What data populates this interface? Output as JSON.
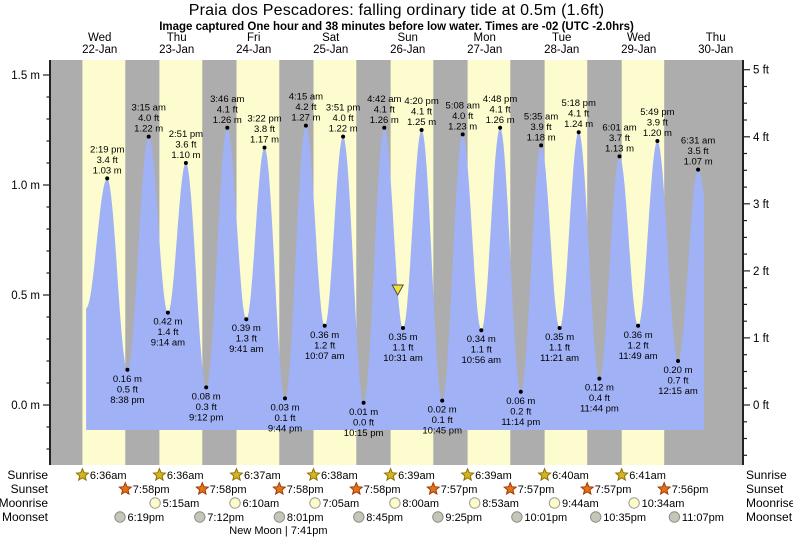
{
  "header": {
    "title": "Praia dos Pescadores: falling  ordinary tide at 0.5m (1.6ft)",
    "subtitle": "Image captured One hour and 38 minutes before low water. Times are -02 (UTC -2.0hrs)"
  },
  "colors": {
    "day_band": "#FCFCCE",
    "night_band": "#ADADAD",
    "tide_fill": "#A0B1F5",
    "day_label_red": "#E0402F",
    "axis_line": "#222222",
    "marker_fill": "#F2E337",
    "marker_border": "#4A4A4A",
    "sunrise_star_fill": "#D9B125",
    "sunrise_star_border": "#8A7500",
    "sunset_star_fill": "#E2731D",
    "sunset_star_border": "#A03C00",
    "moonrise_circle_fill": "#FCFCC8",
    "moonrise_circle_border": "#999999",
    "moonset_circle_fill": "#C6C6B6",
    "moonset_circle_border": "#8C8C8C"
  },
  "chart_data": {
    "type": "area",
    "title": "Praia dos Pescadores: falling  ordinary tide at 0.5m (1.6ft)",
    "x_axis": {
      "days": [
        {
          "name": "Wed",
          "date": "22-Jan"
        },
        {
          "name": "Thu",
          "date": "23-Jan"
        },
        {
          "name": "Fri",
          "date": "24-Jan"
        },
        {
          "name": "Sat",
          "date": "25-Jan"
        },
        {
          "name": "Sun",
          "date": "26-Jan"
        },
        {
          "name": "Mon",
          "date": "27-Jan"
        },
        {
          "name": "Tue",
          "date": "28-Jan"
        },
        {
          "name": "Wed",
          "date": "29-Jan"
        },
        {
          "name": "Thu",
          "date": "30-Jan"
        }
      ]
    },
    "y_axis_left": {
      "unit": "m",
      "major_ticks": [
        0.0,
        0.5,
        1.0,
        1.5
      ],
      "minor_step": 0.1,
      "range": [
        -0.16,
        1.57
      ]
    },
    "y_axis_right": {
      "unit": "ft",
      "major_ticks": [
        0,
        1,
        2,
        3,
        4,
        5
      ],
      "minor_step": 0.25,
      "range": [
        -0.9,
        5.15
      ]
    },
    "tide_events": [
      {
        "day": 0,
        "type": "high",
        "time": "2:19 pm",
        "ft": 3.4,
        "m": 1.03
      },
      {
        "day": 0,
        "type": "low",
        "time": "8:38 pm",
        "ft": 0.5,
        "m": 0.16
      },
      {
        "day": 1,
        "type": "high",
        "time": "3:15 am",
        "ft": 4.0,
        "m": 1.22
      },
      {
        "day": 1,
        "type": "low",
        "time": "9:14 am",
        "ft": 1.4,
        "m": 0.42
      },
      {
        "day": 1,
        "type": "high",
        "time": "2:51 pm",
        "ft": 3.6,
        "m": 1.1
      },
      {
        "day": 1,
        "type": "low",
        "time": "9:12 pm",
        "ft": 0.3,
        "m": 0.08
      },
      {
        "day": 2,
        "type": "high",
        "time": "3:46 am",
        "ft": 4.1,
        "m": 1.26
      },
      {
        "day": 2,
        "type": "low",
        "time": "9:41 am",
        "ft": 1.3,
        "m": 0.39
      },
      {
        "day": 2,
        "type": "high",
        "time": "3:22 pm",
        "ft": 3.8,
        "m": 1.17
      },
      {
        "day": 2,
        "type": "low",
        "time": "9:44 pm",
        "ft": 0.1,
        "m": 0.03
      },
      {
        "day": 3,
        "type": "high",
        "time": "4:15 am",
        "ft": 4.2,
        "m": 1.27
      },
      {
        "day": 3,
        "type": "low",
        "time": "10:07 am",
        "ft": 1.2,
        "m": 0.36
      },
      {
        "day": 3,
        "type": "high",
        "time": "3:51 pm",
        "ft": 4.0,
        "m": 1.22
      },
      {
        "day": 3,
        "type": "low",
        "time": "10:15 pm",
        "ft": 0.0,
        "m": 0.01
      },
      {
        "day": 4,
        "type": "high",
        "time": "4:42 am",
        "ft": 4.1,
        "m": 1.26
      },
      {
        "day": 4,
        "type": "low",
        "time": "10:31 am",
        "ft": 1.1,
        "m": 0.35
      },
      {
        "day": 4,
        "type": "high",
        "time": "4:20 pm",
        "ft": 4.1,
        "m": 1.25
      },
      {
        "day": 4,
        "type": "low",
        "time": "10:45 pm",
        "ft": 0.1,
        "m": 0.02
      },
      {
        "day": 5,
        "type": "high",
        "time": "5:08 am",
        "ft": 4.0,
        "m": 1.23
      },
      {
        "day": 5,
        "type": "low",
        "time": "10:56 am",
        "ft": 1.1,
        "m": 0.34
      },
      {
        "day": 5,
        "type": "high",
        "time": "4:48 pm",
        "ft": 4.1,
        "m": 1.26
      },
      {
        "day": 5,
        "type": "low",
        "time": "11:14 pm",
        "ft": 0.2,
        "m": 0.06
      },
      {
        "day": 6,
        "type": "high",
        "time": "5:35 am",
        "ft": 3.9,
        "m": 1.18
      },
      {
        "day": 6,
        "type": "low",
        "time": "11:21 am",
        "ft": 1.1,
        "m": 0.35
      },
      {
        "day": 6,
        "type": "high",
        "time": "5:18 pm",
        "ft": 4.1,
        "m": 1.24
      },
      {
        "day": 6,
        "type": "low",
        "time": "11:44 pm",
        "ft": 0.4,
        "m": 0.12
      },
      {
        "day": 7,
        "type": "high",
        "time": "6:01 am",
        "ft": 3.7,
        "m": 1.13
      },
      {
        "day": 7,
        "type": "low",
        "time": "11:49 am",
        "ft": 1.2,
        "m": 0.36
      },
      {
        "day": 7,
        "type": "high",
        "time": "5:49 pm",
        "ft": 3.9,
        "m": 1.2
      },
      {
        "day": 8,
        "type": "low",
        "time": "12:15 am",
        "ft": 0.7,
        "m": 0.2
      },
      {
        "day": 8,
        "type": "high",
        "time": "6:31 am",
        "ft": 3.5,
        "m": 1.07
      }
    ],
    "current_marker": {
      "day": 4,
      "time": "8:53 am",
      "height_m": 0.5
    },
    "sun_moon": {
      "rows": [
        {
          "label": "Sunrise",
          "icon": "sunrise-star-icon",
          "entries": [
            {
              "day": 0,
              "time": "6:36am"
            },
            {
              "day": 1,
              "time": "6:36am"
            },
            {
              "day": 2,
              "time": "6:37am"
            },
            {
              "day": 3,
              "time": "6:38am"
            },
            {
              "day": 4,
              "time": "6:39am"
            },
            {
              "day": 5,
              "time": "6:39am"
            },
            {
              "day": 6,
              "time": "6:40am"
            },
            {
              "day": 7,
              "time": "6:41am"
            }
          ]
        },
        {
          "label": "Sunset",
          "icon": "sunset-star-icon",
          "entries": [
            {
              "day": 0,
              "time": "7:58pm"
            },
            {
              "day": 1,
              "time": "7:58pm"
            },
            {
              "day": 2,
              "time": "7:58pm"
            },
            {
              "day": 3,
              "time": "7:58pm"
            },
            {
              "day": 4,
              "time": "7:57pm"
            },
            {
              "day": 5,
              "time": "7:57pm"
            },
            {
              "day": 6,
              "time": "7:57pm"
            },
            {
              "day": 7,
              "time": "7:56pm"
            }
          ]
        },
        {
          "label": "Moonrise",
          "icon": "moonrise-circle-icon",
          "entries": [
            {
              "day": 1,
              "time": "5:15am"
            },
            {
              "day": 2,
              "time": "6:10am"
            },
            {
              "day": 3,
              "time": "7:05am"
            },
            {
              "day": 4,
              "time": "8:00am"
            },
            {
              "day": 5,
              "time": "8:53am"
            },
            {
              "day": 6,
              "time": "9:44am"
            },
            {
              "day": 7,
              "time": "10:34am"
            }
          ]
        },
        {
          "label": "Moonset",
          "icon": "moonset-circle-icon",
          "entries": [
            {
              "day": 0,
              "time": "6:19pm"
            },
            {
              "day": 1,
              "time": "7:12pm"
            },
            {
              "day": 2,
              "time": "8:01pm"
            },
            {
              "day": 3,
              "time": "8:45pm"
            },
            {
              "day": 4,
              "time": "9:25pm"
            },
            {
              "day": 5,
              "time": "10:01pm"
            },
            {
              "day": 6,
              "time": "10:35pm"
            },
            {
              "day": 7,
              "time": "11:07pm"
            }
          ]
        }
      ],
      "moon_phase": {
        "text": "New Moon | 7:41pm",
        "day": 2,
        "time": "7:41pm"
      }
    }
  }
}
